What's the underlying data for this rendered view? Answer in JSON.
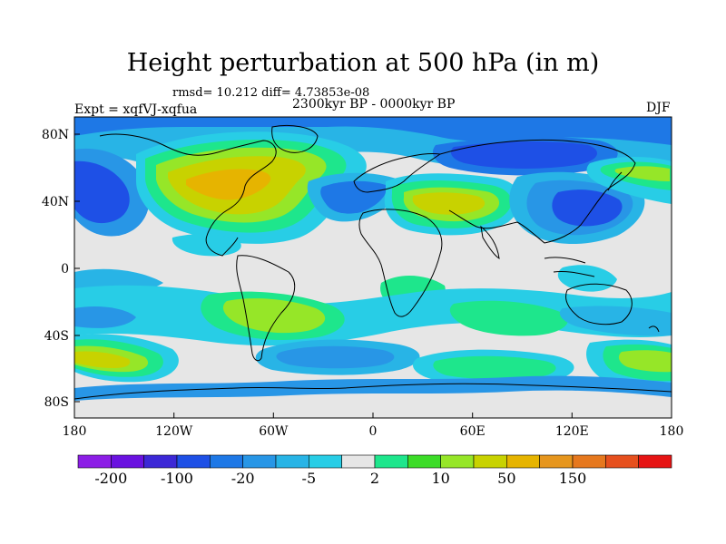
{
  "title": "Height perturbation at 500 hPa (in m)",
  "stats_text": "rmsd= 10.212  diff= 4.73853e-08",
  "period": "2300kyr BP - 0000kyr BP",
  "experiment": "Expt = xqfVJ-xqfua",
  "season": "DJF",
  "axes": {
    "x_ticks": [
      "180",
      "120W",
      "60W",
      "0",
      "60E",
      "120E",
      "180"
    ],
    "y_ticks": [
      "80N",
      "40N",
      "0",
      "40S",
      "80S"
    ]
  },
  "colorbar": {
    "colors": [
      "#8c1ee6",
      "#6a12e0",
      "#3c28d6",
      "#1e50e6",
      "#1e78e6",
      "#2896e6",
      "#28b4e6",
      "#28cde6",
      "#e6e6e6",
      "#1ee68c",
      "#3cdc28",
      "#96e628",
      "#c8d200",
      "#e6b400",
      "#e6961e",
      "#e6781e",
      "#e6501e",
      "#e61414"
    ],
    "labels": [
      "-200",
      "-100",
      "-20",
      "-5",
      "2",
      "10",
      "50",
      "150"
    ]
  },
  "colors": {
    "deep_blue": "#1e50e6",
    "blue": "#1e78e6",
    "mid_blue": "#2896e6",
    "light_blue": "#28b4e6",
    "cyan": "#28cde6",
    "neutral": "#e6e6e6",
    "teal": "#1ee68c",
    "green": "#3cdc28",
    "yellow_green": "#96e628",
    "olive": "#c8d200",
    "orange": "#e6b400"
  },
  "continents": "coastline-outlines"
}
